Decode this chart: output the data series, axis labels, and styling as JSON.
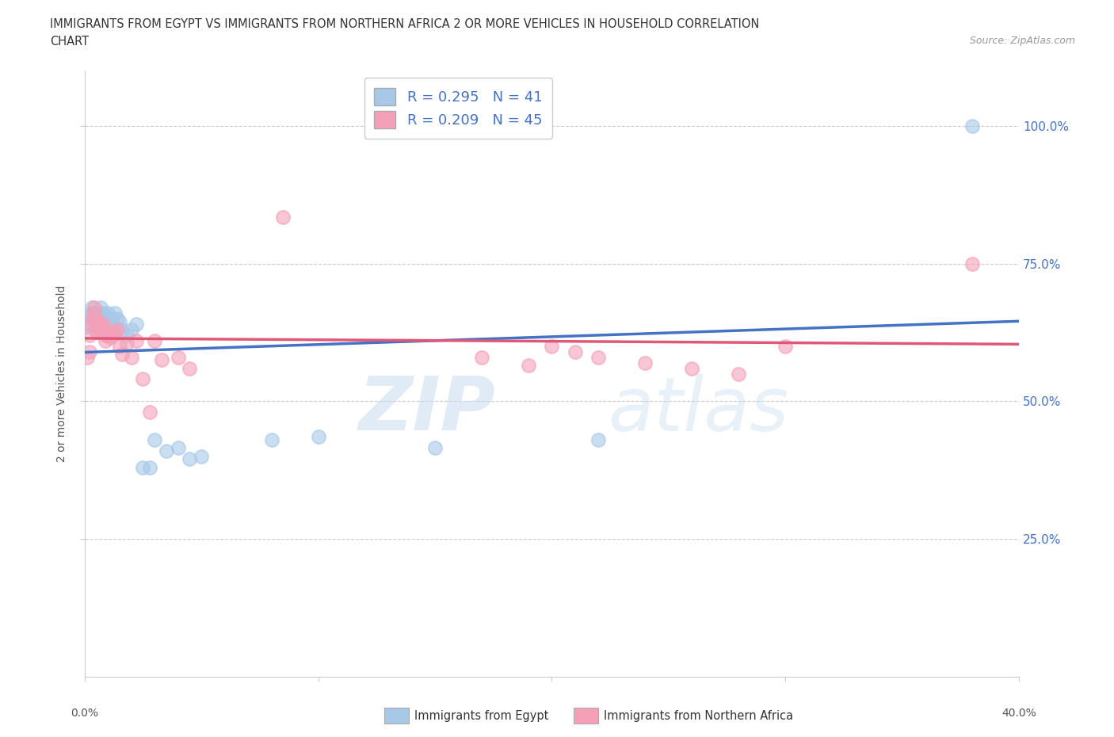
{
  "title_line1": "IMMIGRANTS FROM EGYPT VS IMMIGRANTS FROM NORTHERN AFRICA 2 OR MORE VEHICLES IN HOUSEHOLD CORRELATION",
  "title_line2": "CHART",
  "source_text": "Source: ZipAtlas.com",
  "ylabel": "2 or more Vehicles in Household",
  "xlim": [
    0.0,
    0.4
  ],
  "ylim": [
    0.0,
    1.1
  ],
  "xtick_values": [
    0.0,
    0.1,
    0.2,
    0.3,
    0.4
  ],
  "ytick_values": [
    0.25,
    0.5,
    0.75,
    1.0
  ],
  "ytick_labels": [
    "25.0%",
    "50.0%",
    "75.0%",
    "100.0%"
  ],
  "color_egypt": "#A8C8E8",
  "color_north_africa": "#F4A0B8",
  "color_egypt_line": "#4472C4",
  "color_north_africa_line": "#E05878",
  "R_egypt": 0.295,
  "N_egypt": 41,
  "R_north_africa": 0.209,
  "N_north_africa": 45,
  "legend_label_egypt": "Immigrants from Egypt",
  "legend_label_north_africa": "Immigrants from Northern Africa",
  "watermark_zip": "ZIP",
  "watermark_atlas": "atlas",
  "egypt_x": [
    0.001,
    0.002,
    0.002,
    0.003,
    0.003,
    0.004,
    0.004,
    0.005,
    0.005,
    0.005,
    0.006,
    0.006,
    0.007,
    0.007,
    0.008,
    0.008,
    0.009,
    0.009,
    0.01,
    0.01,
    0.011,
    0.012,
    0.013,
    0.014,
    0.015,
    0.016,
    0.018,
    0.02,
    0.022,
    0.025,
    0.028,
    0.03,
    0.035,
    0.04,
    0.045,
    0.05,
    0.08,
    0.1,
    0.15,
    0.22,
    0.38
  ],
  "egypt_y": [
    0.635,
    0.655,
    0.64,
    0.67,
    0.66,
    0.65,
    0.66,
    0.65,
    0.64,
    0.625,
    0.66,
    0.65,
    0.67,
    0.66,
    0.66,
    0.65,
    0.65,
    0.655,
    0.65,
    0.66,
    0.65,
    0.65,
    0.66,
    0.65,
    0.645,
    0.63,
    0.62,
    0.63,
    0.64,
    0.38,
    0.38,
    0.43,
    0.41,
    0.415,
    0.395,
    0.4,
    0.43,
    0.435,
    0.415,
    0.43,
    1.0
  ],
  "north_africa_x": [
    0.001,
    0.002,
    0.002,
    0.003,
    0.003,
    0.004,
    0.004,
    0.005,
    0.005,
    0.006,
    0.006,
    0.007,
    0.007,
    0.008,
    0.008,
    0.009,
    0.009,
    0.01,
    0.011,
    0.011,
    0.012,
    0.013,
    0.014,
    0.015,
    0.016,
    0.018,
    0.02,
    0.022,
    0.025,
    0.028,
    0.03,
    0.033,
    0.04,
    0.045,
    0.085,
    0.17,
    0.19,
    0.2,
    0.21,
    0.22,
    0.24,
    0.26,
    0.28,
    0.3,
    0.38
  ],
  "north_africa_y": [
    0.58,
    0.62,
    0.59,
    0.65,
    0.64,
    0.67,
    0.66,
    0.64,
    0.625,
    0.645,
    0.635,
    0.64,
    0.625,
    0.64,
    0.63,
    0.62,
    0.61,
    0.62,
    0.625,
    0.615,
    0.62,
    0.625,
    0.63,
    0.6,
    0.585,
    0.605,
    0.58,
    0.61,
    0.54,
    0.48,
    0.61,
    0.575,
    0.58,
    0.56,
    0.835,
    0.58,
    0.565,
    0.6,
    0.59,
    0.58,
    0.57,
    0.56,
    0.55,
    0.6,
    0.75
  ],
  "grid_color": "#CCCCCC",
  "title_color": "#333333",
  "source_color": "#999999",
  "ytick_color": "#4472C4",
  "xtick_color": "#555555",
  "ylabel_color": "#555555"
}
